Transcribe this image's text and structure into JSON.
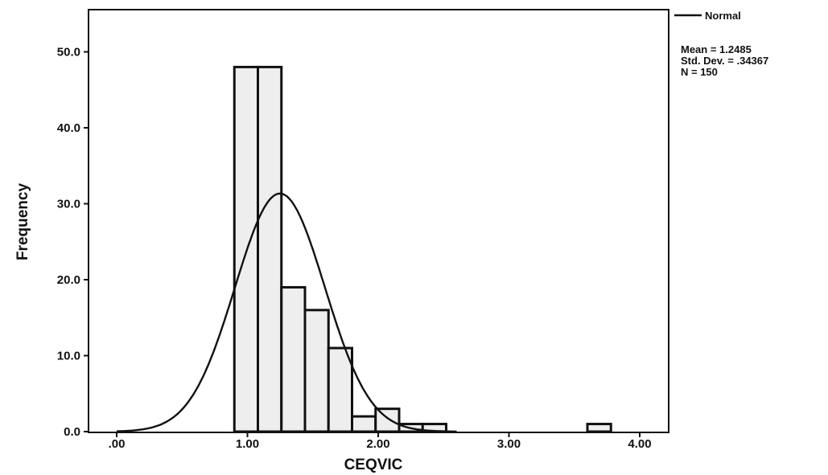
{
  "chart_data": {
    "type": "bar",
    "subtype": "histogram",
    "xlabel": "CEQVIC",
    "ylabel": "Frequency",
    "xlim": [
      -0.1,
      4.1
    ],
    "ylim": [
      0,
      56
    ],
    "x_ticks": [
      0,
      1,
      2,
      3,
      4
    ],
    "x_tick_labels": [
      ".00",
      "1.00",
      "2.00",
      "3.00",
      "4.00"
    ],
    "y_ticks": [
      0,
      10,
      20,
      30,
      40,
      50
    ],
    "y_tick_labels": [
      "0.0",
      "10.0",
      "20.0",
      "30.0",
      "40.0",
      "50.0"
    ],
    "bins": [
      {
        "start": 0.9,
        "end": 1.08,
        "value": 48
      },
      {
        "start": 1.08,
        "end": 1.26,
        "value": 48
      },
      {
        "start": 1.26,
        "end": 1.44,
        "value": 19
      },
      {
        "start": 1.44,
        "end": 1.62,
        "value": 16
      },
      {
        "start": 1.62,
        "end": 1.8,
        "value": 11
      },
      {
        "start": 1.8,
        "end": 1.98,
        "value": 2
      },
      {
        "start": 1.98,
        "end": 2.16,
        "value": 3
      },
      {
        "start": 2.16,
        "end": 2.34,
        "value": 1
      },
      {
        "start": 2.34,
        "end": 2.52,
        "value": 1
      },
      {
        "start": 3.6,
        "end": 3.78,
        "value": 1
      }
    ],
    "normal_curve": {
      "mean": 1.2485,
      "sd": 0.34367,
      "n": 150,
      "bin_width": 0.18
    },
    "legend": {
      "label": "Normal",
      "position": "top-right"
    },
    "stats": [
      "Mean = 1.2485",
      "Std. Dev. = .34367",
      "N = 150"
    ],
    "grid": false,
    "colors": {
      "bar_fill": "#eeeeee",
      "bar_stroke": "#111111",
      "curve": "#111111",
      "background": "#ffffff"
    }
  }
}
